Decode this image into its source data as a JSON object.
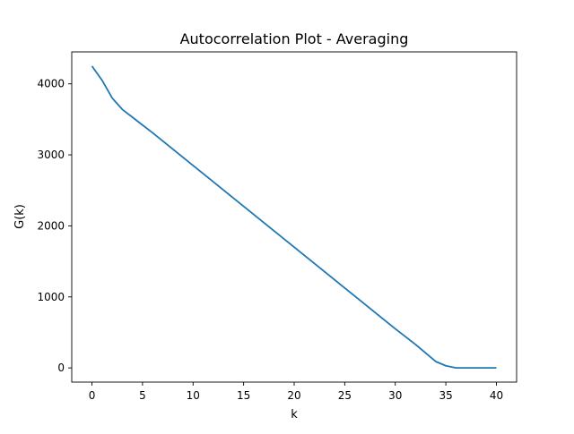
{
  "chart_data": {
    "type": "line",
    "title": "Autocorrelation Plot - Averaging",
    "xlabel": "k",
    "ylabel": "G(k)",
    "xlim": [
      -2,
      42
    ],
    "ylim": [
      -200,
      4450
    ],
    "xticks": [
      0,
      5,
      10,
      15,
      20,
      25,
      30,
      35,
      40
    ],
    "yticks": [
      0,
      1000,
      2000,
      3000,
      4000
    ],
    "grid": false,
    "series": [
      {
        "color": "#1f77b4",
        "x": [
          0,
          1,
          2,
          3,
          4,
          5,
          6,
          7,
          8,
          9,
          10,
          11,
          12,
          13,
          14,
          15,
          16,
          17,
          18,
          19,
          20,
          21,
          22,
          23,
          24,
          25,
          26,
          27,
          28,
          29,
          30,
          31,
          32,
          33,
          34,
          35,
          36,
          37,
          38,
          39,
          40
        ],
        "y": [
          4250,
          4050,
          3800,
          3640,
          3530,
          3420,
          3310,
          3195,
          3080,
          2965,
          2850,
          2735,
          2620,
          2505,
          2390,
          2275,
          2160,
          2045,
          1930,
          1815,
          1700,
          1585,
          1470,
          1355,
          1240,
          1125,
          1010,
          895,
          780,
          665,
          550,
          440,
          330,
          210,
          90,
          30,
          0,
          0,
          0,
          0,
          0
        ]
      }
    ]
  }
}
